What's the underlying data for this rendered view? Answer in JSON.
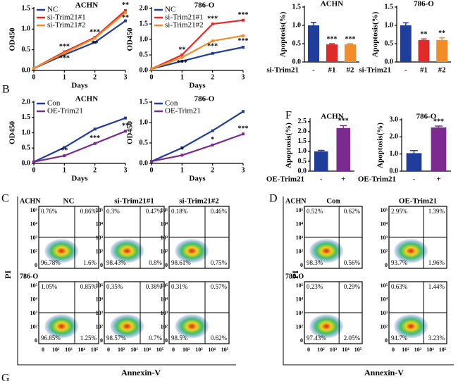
{
  "panel_letters": [
    "B",
    "C",
    "D",
    "F",
    "G"
  ],
  "chart_data": [
    {
      "type": "line",
      "title": "ACHN",
      "ylabel": "OD450",
      "xlabel": "Days",
      "x": [
        0,
        1,
        2,
        3
      ],
      "xlim": [
        0,
        3
      ],
      "xticks": [
        0,
        1,
        2,
        3
      ],
      "ylim": [
        0,
        1.5
      ],
      "yticks": [
        {
          "value": 0,
          "label": "0.0"
        },
        0.5,
        {
          "value": 1,
          "label": "1.0"
        },
        1.5
      ],
      "series": [
        {
          "name": "NC",
          "color": "#1f3d99",
          "values": [
            0.05,
            0.38,
            0.68,
            1.2
          ]
        },
        {
          "name": "si-Trim21#1",
          "color": "#e02a2a",
          "values": [
            0.05,
            0.45,
            0.8,
            1.45
          ],
          "labels": [
            null,
            "***",
            "***",
            "**"
          ]
        },
        {
          "name": "si-Trim21#2",
          "color": "#f28c28",
          "values": [
            0.05,
            0.42,
            0.78,
            1.4
          ],
          "labels": [
            null,
            "***",
            "**",
            "**"
          ]
        }
      ]
    },
    {
      "type": "line",
      "title": "786-O",
      "ylabel": "OD450",
      "xlabel": "Days",
      "x": [
        0,
        1,
        2,
        3
      ],
      "xlim": [
        0,
        3
      ],
      "xticks": [
        0,
        1,
        2,
        3
      ],
      "ylim": [
        0,
        2
      ],
      "yticks": [
        {
          "value": 0,
          "label": "0.0"
        },
        0.5,
        {
          "value": 1,
          "label": "1.0"
        },
        1.5,
        {
          "value": 2,
          "label": "2.0"
        }
      ],
      "series": [
        {
          "name": "NC",
          "color": "#1f3d99",
          "values": [
            0.05,
            0.3,
            0.55,
            0.75
          ]
        },
        {
          "name": "si-Trim21#1",
          "color": "#e02a2a",
          "values": [
            0.05,
            0.5,
            1.5,
            1.62
          ],
          "labels": [
            null,
            "**",
            "***",
            "***"
          ]
        },
        {
          "name": "si-Trim21#2",
          "color": "#f28c28",
          "values": [
            0.05,
            0.42,
            0.95,
            1.12
          ],
          "labels": [
            null,
            "***",
            "***",
            "***"
          ]
        }
      ]
    },
    {
      "type": "line",
      "title": "ACHN",
      "ylabel": "OD450",
      "xlabel": "Days",
      "x": [
        0,
        1,
        2,
        3
      ],
      "xlim": [
        0,
        3
      ],
      "xticks": [
        0,
        1,
        2,
        3
      ],
      "ylim": [
        0,
        2
      ],
      "yticks": [
        {
          "value": 0,
          "label": "0.0"
        },
        0.5,
        {
          "value": 1,
          "label": "1.0"
        },
        1.5,
        {
          "value": 2,
          "label": "2.0"
        }
      ],
      "series": [
        {
          "name": "Con",
          "color": "#1f3d99",
          "values": [
            0.05,
            0.52,
            1.12,
            1.48
          ]
        },
        {
          "name": "OE-Trim21",
          "color": "#7b2a8f",
          "values": [
            0.05,
            0.25,
            0.65,
            1.05
          ],
          "labels": [
            null,
            "**",
            "***",
            "**"
          ]
        }
      ]
    },
    {
      "type": "line",
      "title": "786-O",
      "ylabel": "OD450",
      "xlabel": "Days",
      "x": [
        0,
        1,
        2,
        3
      ],
      "xlim": [
        0,
        3
      ],
      "xticks": [
        0,
        1,
        2,
        3
      ],
      "ylim": [
        0,
        1.5
      ],
      "yticks": [
        {
          "value": 0,
          "label": "0.0"
        },
        0.5,
        {
          "value": 1,
          "label": "1.0"
        },
        1.5
      ],
      "series": [
        {
          "name": "Con",
          "color": "#1f3d99",
          "values": [
            0.05,
            0.38,
            0.8,
            1.27
          ]
        },
        {
          "name": "OE-Trim21",
          "color": "#7b2a8f",
          "values": [
            0.05,
            0.2,
            0.45,
            0.72
          ],
          "labels": [
            null,
            "*",
            "*",
            "***"
          ]
        }
      ]
    },
    {
      "type": "bar",
      "title": "ACHN",
      "ylabel": "Apoptosis(%)",
      "group_label": "si-Trim21",
      "categories": [
        "-",
        "#1",
        "#2"
      ],
      "values": [
        1.0,
        0.48,
        0.48
      ],
      "errors": [
        0.08,
        0.02,
        0.02
      ],
      "colors": [
        "#1f3d99",
        "#e02a2a",
        "#f28c28"
      ],
      "labels": [
        null,
        "***",
        "***"
      ],
      "ylim": [
        0,
        1.5
      ],
      "yticks": [
        {
          "value": 0,
          "label": "0.0"
        },
        0.5,
        {
          "value": 1,
          "label": "1.0"
        },
        1.5
      ]
    },
    {
      "type": "bar",
      "title": "786-O",
      "ylabel": "Apoptosis(%)",
      "group_label": "si-Trim21",
      "categories": [
        "-",
        "#1",
        "#2"
      ],
      "values": [
        1.0,
        0.6,
        0.6
      ],
      "errors": [
        0.07,
        0.03,
        0.06
      ],
      "colors": [
        "#1f3d99",
        "#e02a2a",
        "#f28c28"
      ],
      "labels": [
        null,
        "**",
        "**"
      ],
      "ylim": [
        0,
        1.5
      ],
      "yticks": [
        {
          "value": 0,
          "label": "0.0"
        },
        0.5,
        {
          "value": 1,
          "label": "1.0"
        },
        1.5
      ]
    },
    {
      "type": "bar",
      "title": "ACHN",
      "ylabel": "Apoptosis(%)",
      "group_label": "OE-Trim21",
      "categories": [
        "-",
        "+"
      ],
      "values": [
        1.0,
        2.18
      ],
      "errors": [
        0.05,
        0.12
      ],
      "colors": [
        "#1f3d99",
        "#7b2a8f"
      ],
      "labels": [
        null,
        "***"
      ],
      "ylim": [
        0,
        2.6
      ],
      "yticks": [
        {
          "value": 0,
          "label": "0.0"
        },
        0.5,
        {
          "value": 1,
          "label": "1.0"
        },
        1.5,
        {
          "value": 2,
          "label": "2.0"
        },
        2.5
      ]
    },
    {
      "type": "bar",
      "title": "786-O",
      "ylabel": "Apoptosis(%)",
      "group_label": "OE-Trim21",
      "categories": [
        "-",
        "+"
      ],
      "values": [
        1.05,
        2.55
      ],
      "errors": [
        0.15,
        0.08
      ],
      "colors": [
        "#1f3d99",
        "#7b2a8f"
      ],
      "labels": [
        null,
        "***"
      ],
      "ylim": [
        0,
        3
      ],
      "yticks": [
        {
          "value": 0,
          "label": "0.0"
        },
        {
          "value": 1,
          "label": "1.0"
        },
        {
          "value": 2,
          "label": "2.0"
        },
        {
          "value": 3,
          "label": "3.0"
        }
      ]
    }
  ],
  "flow_axis": {
    "ylabel": "PI",
    "xlabel": "Annexin-V",
    "yticks": [
      "10⁵",
      "10⁴",
      "10³",
      "10²",
      "0"
    ],
    "xticks": [
      "0",
      "10²",
      "10³",
      "10⁴",
      "10⁵"
    ]
  },
  "flow_panels": [
    {
      "columns": [
        "NC",
        "si-Trim21#1",
        "si-Trim21#2"
      ],
      "rows": [
        {
          "label": "ACHN",
          "cells": [
            [
              "0.76%",
              "0.86%",
              "96.78%",
              "1.6%"
            ],
            [
              "0.3%",
              "0.47%",
              "98.43%",
              "0.8%"
            ],
            [
              "0.18%",
              "0.46%",
              "98.61%",
              "0.75%"
            ]
          ]
        },
        {
          "label": "786-O",
          "cells": [
            [
              "1.05%",
              "0.85%",
              "96.85%",
              "1.25%"
            ],
            [
              "0.35%",
              "0.38%",
              "98.57%",
              "0.7%"
            ],
            [
              "0.31%",
              "0.57%",
              "98.5%",
              "0.62%"
            ]
          ]
        }
      ]
    },
    {
      "columns": [
        "Con",
        "OE-Trim21"
      ],
      "rows": [
        {
          "label": "ACHN",
          "cells": [
            [
              "0.52%",
              "0.62%",
              "98.3%",
              "0.56%"
            ],
            [
              "2.95%",
              "1.39%",
              "93.7%",
              "1.96%"
            ]
          ]
        },
        {
          "label": "786-O",
          "cells": [
            [
              "0.23%",
              "0.29%",
              "97.43%",
              "2.05%"
            ],
            [
              "0.63%",
              "1.44%",
              "94.7%",
              "3.23%"
            ]
          ]
        }
      ]
    }
  ]
}
